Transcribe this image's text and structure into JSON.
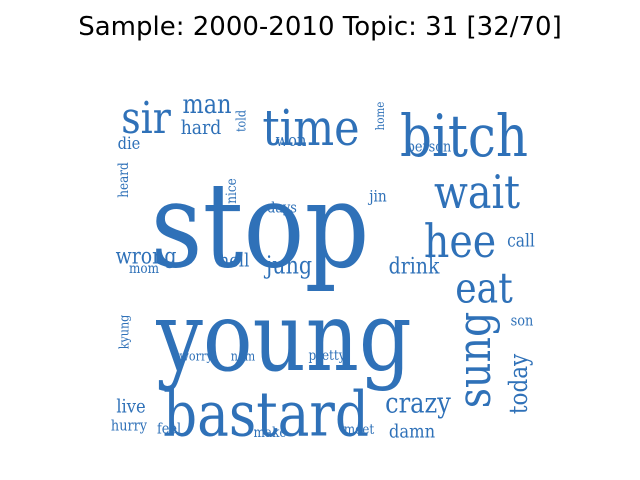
{
  "title": "Sample: 2000-2010 Topic: 31 [32/70]",
  "word_color": "#2f71b8",
  "chart_data": {
    "type": "wordcloud",
    "title": "Sample: 2000-2010 Topic: 31 [32/70]",
    "words": [
      {
        "text": "stop",
        "weight": 1.0
      },
      {
        "text": "young",
        "weight": 0.95
      },
      {
        "text": "bastard",
        "weight": 0.62
      },
      {
        "text": "bitch",
        "weight": 0.52
      },
      {
        "text": "time",
        "weight": 0.48
      },
      {
        "text": "wait",
        "weight": 0.46
      },
      {
        "text": "hee",
        "weight": 0.45
      },
      {
        "text": "sung",
        "weight": 0.45
      },
      {
        "text": "eat",
        "weight": 0.42
      },
      {
        "text": "sir",
        "weight": 0.4
      },
      {
        "text": "crazy",
        "weight": 0.28
      },
      {
        "text": "today",
        "weight": 0.25
      },
      {
        "text": "man",
        "weight": 0.25
      },
      {
        "text": "jung",
        "weight": 0.22
      },
      {
        "text": "drink",
        "weight": 0.2
      },
      {
        "text": "hard",
        "weight": 0.2
      },
      {
        "text": "wrong",
        "weight": 0.2
      },
      {
        "text": "damn",
        "weight": 0.18
      },
      {
        "text": "hell",
        "weight": 0.18
      },
      {
        "text": "live",
        "weight": 0.18
      },
      {
        "text": "call",
        "weight": 0.17
      },
      {
        "text": "won",
        "weight": 0.16
      },
      {
        "text": "die",
        "weight": 0.16
      },
      {
        "text": "jin",
        "weight": 0.15
      },
      {
        "text": "person",
        "weight": 0.15
      },
      {
        "text": "days",
        "weight": 0.14
      },
      {
        "text": "hurry",
        "weight": 0.14
      },
      {
        "text": "feel",
        "weight": 0.14
      },
      {
        "text": "meet",
        "weight": 0.13
      },
      {
        "text": "son",
        "weight": 0.14
      },
      {
        "text": "pretty",
        "weight": 0.13
      },
      {
        "text": "nice",
        "weight": 0.13
      },
      {
        "text": "heard",
        "weight": 0.13
      },
      {
        "text": "mom",
        "weight": 0.13
      },
      {
        "text": "worry",
        "weight": 0.12
      },
      {
        "text": "nam",
        "weight": 0.12
      },
      {
        "text": "make",
        "weight": 0.12
      },
      {
        "text": "kyung",
        "weight": 0.12
      },
      {
        "text": "told",
        "weight": 0.11
      },
      {
        "text": "home",
        "weight": 0.1
      }
    ]
  }
}
